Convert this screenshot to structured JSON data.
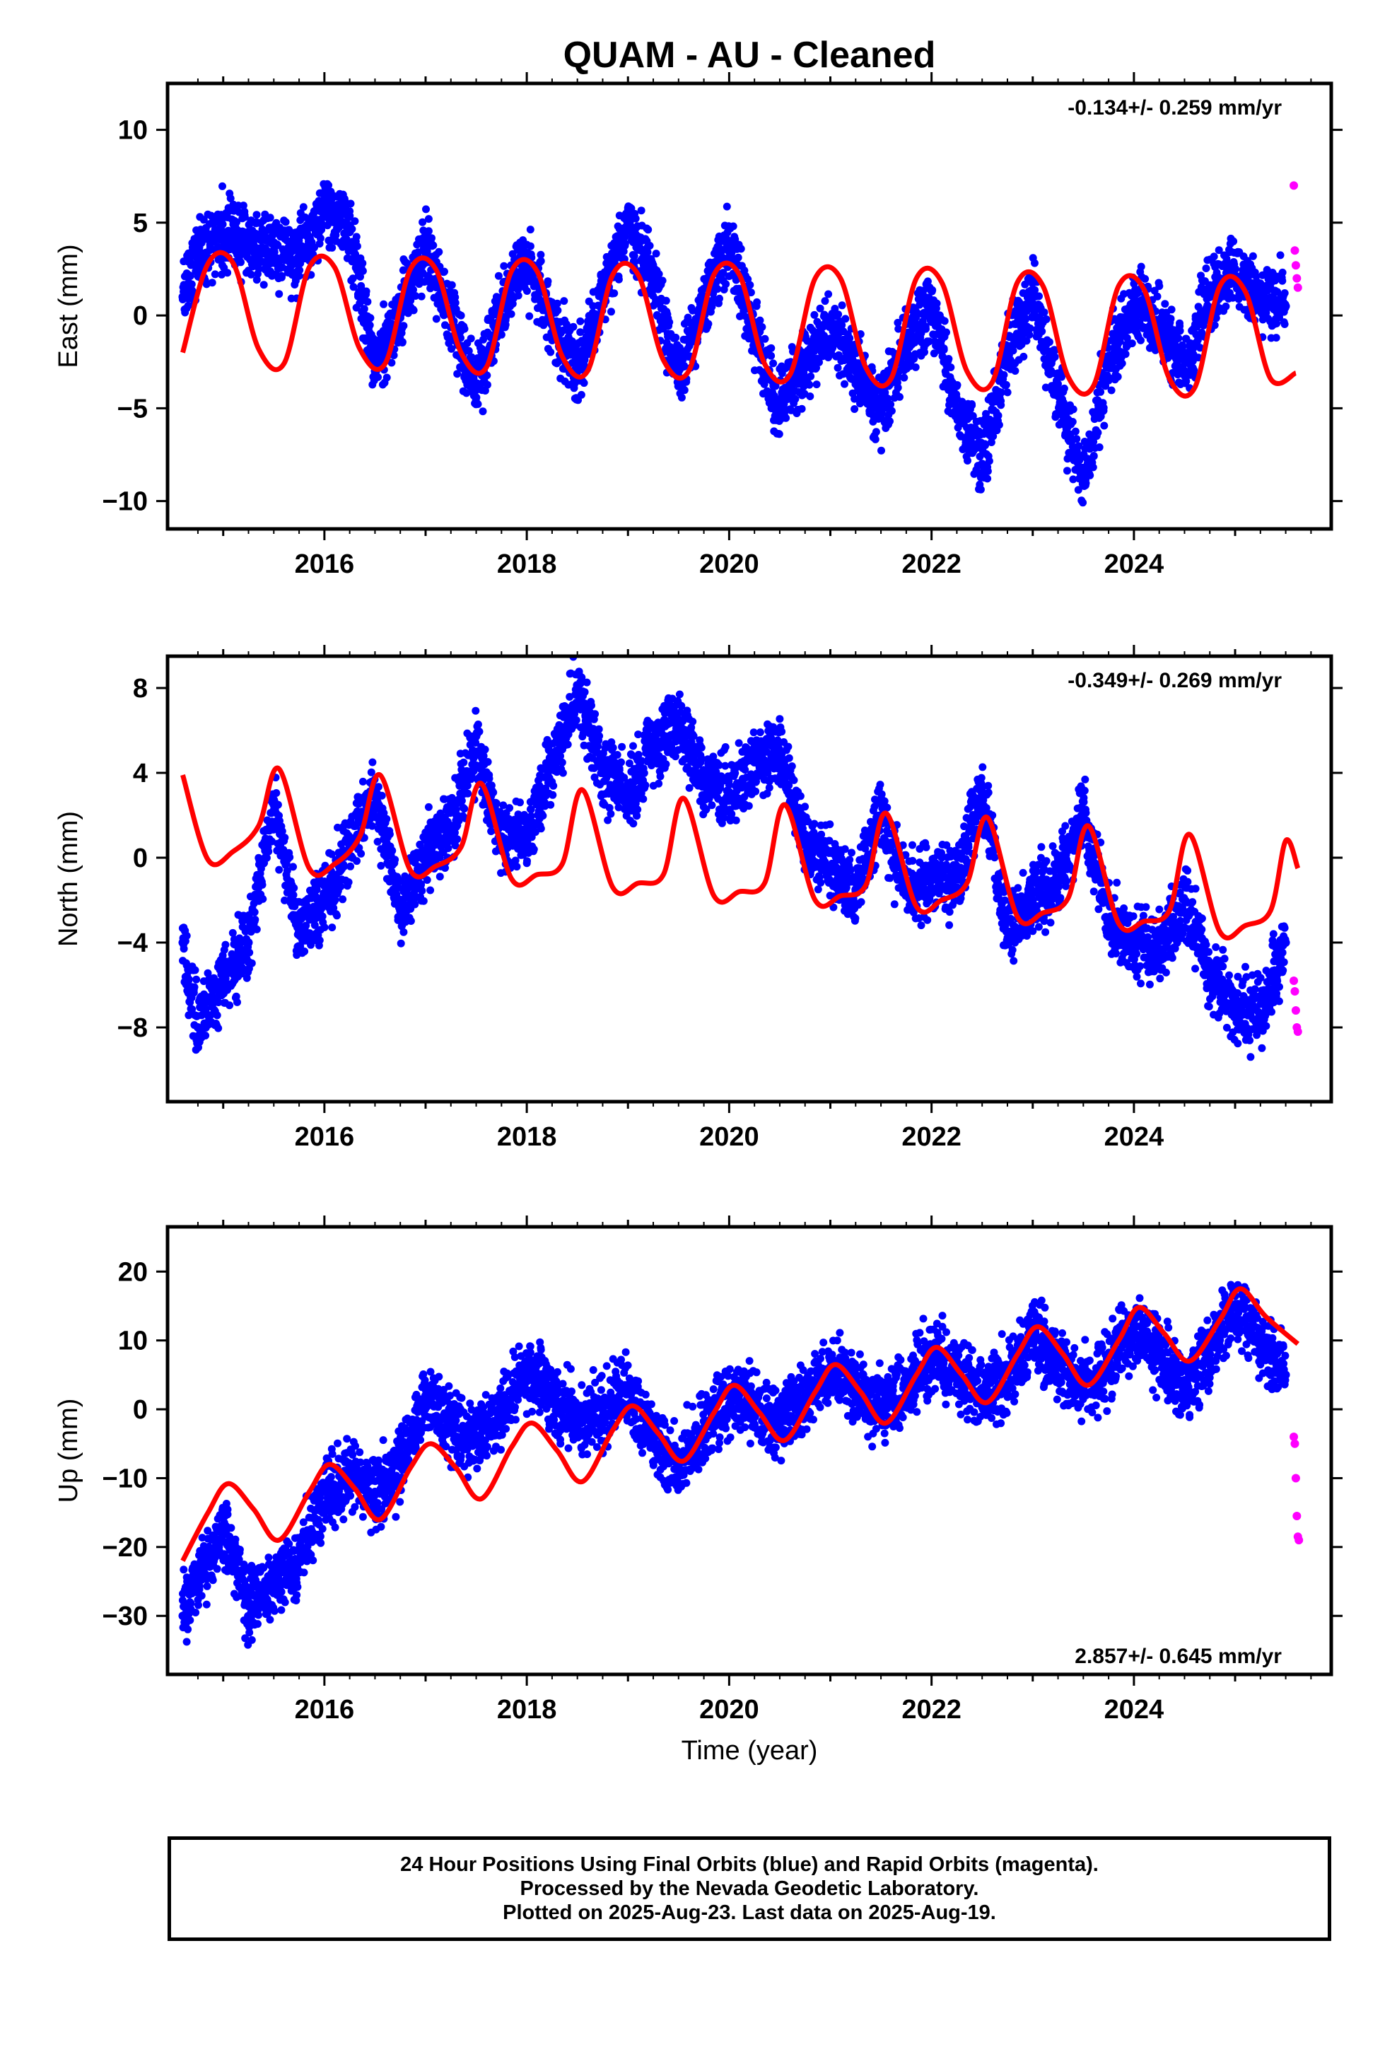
{
  "title": "QUAM  - AU - Cleaned",
  "xlabel": "Time (year)",
  "colors": {
    "final": "#0000ff",
    "rapid": "#ff00ff",
    "model": "#ff0000",
    "axis": "#000000"
  },
  "footer": {
    "line1": "24 Hour Positions Using Final Orbits (blue) and Rapid Orbits (magenta).",
    "line2": "Processed by the Nevada Geodetic Laboratory.",
    "line3": "Plotted on 2025-Aug-23. Last data on 2025-Aug-19."
  },
  "chart_data": [
    {
      "type": "scatter",
      "component": "East",
      "ylabel": "East (mm)",
      "rate_label": "-0.134+/- 0.259 mm/yr",
      "xlim": [
        2014.45,
        2025.95
      ],
      "ylim": [
        -11.5,
        12.5
      ],
      "xticks": [
        2016,
        2018,
        2020,
        2022,
        2024
      ],
      "xtick_labels": [
        "2016",
        "2018",
        "2020",
        "2022",
        "2024"
      ],
      "yticks": [
        -10,
        -5,
        0,
        5,
        10
      ],
      "ytick_labels": [
        "−10",
        "−5",
        "0",
        "5",
        "10"
      ],
      "series": [
        {
          "name": "Final Orbits",
          "color": "blue",
          "x": [
            2014.6,
            2014.75,
            2015.0,
            2015.25,
            2015.5,
            2015.75,
            2016.0,
            2016.25,
            2016.5,
            2016.75,
            2017.0,
            2017.25,
            2017.5,
            2017.75,
            2018.0,
            2018.25,
            2018.5,
            2018.75,
            2019.0,
            2019.25,
            2019.5,
            2019.75,
            2020.0,
            2020.25,
            2020.5,
            2020.75,
            2021.0,
            2021.25,
            2021.5,
            2021.75,
            2022.0,
            2022.25,
            2022.5,
            2022.75,
            2023.0,
            2023.25,
            2023.5,
            2023.75,
            2024.0,
            2024.25,
            2024.5,
            2024.75,
            2025.0,
            2025.25,
            2025.5
          ],
          "y": [
            1.0,
            3.0,
            4.5,
            4.0,
            3.5,
            3.0,
            6.0,
            4.5,
            -3.0,
            0.5,
            3.5,
            0.0,
            -4.0,
            0.5,
            3.0,
            -0.5,
            -3.0,
            1.0,
            5.0,
            2.0,
            -3.0,
            0.5,
            4.0,
            -1.0,
            -5.0,
            -2.5,
            -0.5,
            -3.0,
            -5.0,
            -1.5,
            0.5,
            -5.0,
            -8.0,
            -2.0,
            1.0,
            -4.0,
            -9.0,
            -2.5,
            0.5,
            -0.5,
            -3.0,
            1.0,
            2.5,
            1.0,
            0.5
          ]
        },
        {
          "name": "Rapid Orbits",
          "color": "magenta",
          "x": [
            2025.58,
            2025.59,
            2025.6,
            2025.61,
            2025.62
          ],
          "y": [
            7.0,
            3.5,
            2.7,
            2.0,
            1.5
          ]
        },
        {
          "name": "Model",
          "color": "red",
          "kind": "line",
          "x": [
            2014.6,
            2014.85,
            2015.1,
            2015.35,
            2015.6,
            2015.85,
            2016.1,
            2016.35,
            2016.6,
            2016.85,
            2017.1,
            2017.35,
            2017.6,
            2017.85,
            2018.1,
            2018.35,
            2018.6,
            2018.85,
            2019.1,
            2019.35,
            2019.6,
            2019.85,
            2020.1,
            2020.35,
            2020.6,
            2020.85,
            2021.1,
            2021.35,
            2021.6,
            2021.85,
            2022.1,
            2022.35,
            2022.6,
            2022.85,
            2023.1,
            2023.35,
            2023.6,
            2023.85,
            2024.1,
            2024.35,
            2024.6,
            2024.85,
            2025.1,
            2025.35,
            2025.6
          ],
          "y": [
            -2.0,
            2.8,
            2.8,
            -1.8,
            -2.6,
            2.6,
            2.6,
            -1.8,
            -2.6,
            2.5,
            2.5,
            -2.0,
            -2.8,
            2.4,
            2.4,
            -2.2,
            -3.0,
            2.2,
            2.2,
            -2.4,
            -3.0,
            2.2,
            2.2,
            -2.6,
            -3.2,
            2.0,
            2.0,
            -2.8,
            -3.4,
            2.0,
            1.8,
            -3.0,
            -3.6,
            1.8,
            1.6,
            -3.3,
            -3.8,
            1.6,
            1.4,
            -3.4,
            -3.9,
            1.6,
            1.3,
            -3.4,
            -3.1
          ]
        }
      ]
    },
    {
      "type": "scatter",
      "component": "North",
      "ylabel": "North (mm)",
      "rate_label": "-0.349+/- 0.269 mm/yr",
      "xlim": [
        2014.45,
        2025.95
      ],
      "ylim": [
        -11.5,
        9.5
      ],
      "xticks": [
        2016,
        2018,
        2020,
        2022,
        2024
      ],
      "xtick_labels": [
        "2016",
        "2018",
        "2020",
        "2022",
        "2024"
      ],
      "yticks": [
        -8,
        -4,
        0,
        4,
        8
      ],
      "ytick_labels": [
        "−8",
        "−4",
        "0",
        "4",
        "8"
      ],
      "series": [
        {
          "name": "Final Orbits",
          "color": "blue",
          "x": [
            2014.6,
            2014.75,
            2015.0,
            2015.25,
            2015.5,
            2015.75,
            2016.0,
            2016.25,
            2016.5,
            2016.75,
            2017.0,
            2017.25,
            2017.5,
            2017.75,
            2018.0,
            2018.25,
            2018.5,
            2018.75,
            2019.0,
            2019.25,
            2019.5,
            2019.75,
            2020.0,
            2020.25,
            2020.5,
            2020.75,
            2021.0,
            2021.25,
            2021.5,
            2021.75,
            2022.0,
            2022.25,
            2022.5,
            2022.75,
            2023.0,
            2023.25,
            2023.5,
            2023.75,
            2024.0,
            2024.25,
            2024.5,
            2024.75,
            2025.0,
            2025.25,
            2025.5
          ],
          "y": [
            -4.0,
            -8.0,
            -6.0,
            -4.0,
            2.5,
            -3.5,
            -2.0,
            0.5,
            3.0,
            -2.5,
            0.0,
            1.5,
            5.0,
            1.0,
            1.0,
            4.5,
            8.0,
            4.0,
            3.0,
            5.0,
            6.5,
            3.5,
            3.0,
            4.5,
            5.0,
            1.0,
            -0.5,
            -1.5,
            2.0,
            -1.5,
            -1.0,
            -1.0,
            3.0,
            -3.5,
            -2.0,
            -1.0,
            2.0,
            -3.0,
            -4.0,
            -4.5,
            -2.0,
            -5.5,
            -7.0,
            -7.5,
            -4.0
          ]
        },
        {
          "name": "Rapid Orbits",
          "color": "magenta",
          "x": [
            2025.58,
            2025.59,
            2025.6,
            2025.61,
            2025.62
          ],
          "y": [
            -5.8,
            -6.3,
            -7.2,
            -8.0,
            -8.2
          ]
        },
        {
          "name": "Model",
          "color": "red",
          "kind": "line",
          "x": [
            2014.6,
            2014.85,
            2015.1,
            2015.35,
            2015.55,
            2015.85,
            2016.1,
            2016.35,
            2016.55,
            2016.85,
            2017.1,
            2017.35,
            2017.55,
            2017.85,
            2018.1,
            2018.35,
            2018.55,
            2018.85,
            2019.1,
            2019.35,
            2019.55,
            2019.85,
            2020.1,
            2020.35,
            2020.55,
            2020.85,
            2021.1,
            2021.35,
            2021.55,
            2021.85,
            2022.1,
            2022.35,
            2022.55,
            2022.85,
            2023.1,
            2023.35,
            2023.55,
            2023.85,
            2024.1,
            2024.35,
            2024.55,
            2024.85,
            2025.1,
            2025.35,
            2025.5,
            2025.62
          ],
          "y": [
            3.9,
            -0.1,
            0.3,
            1.5,
            4.2,
            -0.5,
            -0.3,
            1.0,
            3.9,
            -0.6,
            -0.4,
            0.5,
            3.5,
            -1.0,
            -0.8,
            -0.3,
            3.2,
            -1.4,
            -1.2,
            -0.8,
            2.8,
            -1.8,
            -1.6,
            -1.2,
            2.5,
            -2.0,
            -1.8,
            -1.3,
            2.1,
            -2.3,
            -2.0,
            -1.2,
            1.9,
            -2.8,
            -2.6,
            -1.9,
            1.5,
            -3.1,
            -3.0,
            -2.5,
            1.1,
            -3.5,
            -3.2,
            -2.5,
            0.8,
            -0.5
          ]
        }
      ]
    },
    {
      "type": "scatter",
      "component": "Up",
      "ylabel": "Up (mm)",
      "rate_label": "2.857+/- 0.645 mm/yr",
      "xlim": [
        2014.45,
        2025.95
      ],
      "ylim": [
        -38.5,
        26.5
      ],
      "xticks": [
        2016,
        2018,
        2020,
        2022,
        2024
      ],
      "xtick_labels": [
        "2016",
        "2018",
        "2020",
        "2022",
        "2024"
      ],
      "yticks": [
        -30,
        -20,
        -10,
        0,
        10,
        20
      ],
      "ytick_labels": [
        "−30",
        "−20",
        "−10",
        "0",
        "10",
        "20"
      ],
      "series": [
        {
          "name": "Final Orbits",
          "color": "blue",
          "x": [
            2014.6,
            2014.75,
            2015.0,
            2015.25,
            2015.5,
            2015.75,
            2016.0,
            2016.25,
            2016.5,
            2016.75,
            2017.0,
            2017.25,
            2017.5,
            2017.75,
            2018.0,
            2018.25,
            2018.5,
            2018.75,
            2019.0,
            2019.25,
            2019.5,
            2019.75,
            2020.0,
            2020.25,
            2020.5,
            2020.75,
            2021.0,
            2021.25,
            2021.5,
            2021.75,
            2022.0,
            2022.25,
            2022.5,
            2022.75,
            2023.0,
            2023.25,
            2023.5,
            2023.75,
            2024.0,
            2024.25,
            2024.5,
            2024.75,
            2025.0,
            2025.25,
            2025.5
          ],
          "y": [
            -30.0,
            -25.0,
            -18.0,
            -28.0,
            -25.0,
            -22.0,
            -12.0,
            -10.0,
            -12.0,
            -8.0,
            2.0,
            -2.0,
            -5.0,
            0.0,
            5.0,
            3.0,
            -2.0,
            0.0,
            3.0,
            -5.0,
            -8.0,
            -3.0,
            2.0,
            1.0,
            -2.0,
            2.0,
            6.0,
            3.0,
            0.0,
            3.0,
            8.0,
            5.0,
            2.0,
            5.0,
            10.0,
            7.0,
            3.0,
            6.0,
            12.0,
            8.0,
            3.0,
            8.0,
            15.0,
            10.0,
            5.0
          ]
        },
        {
          "name": "Rapid Orbits",
          "color": "magenta",
          "x": [
            2025.58,
            2025.59,
            2025.6,
            2025.61,
            2025.62,
            2025.63
          ],
          "y": [
            -4.0,
            -5.0,
            -10.0,
            -15.5,
            -18.5,
            -19.0
          ]
        },
        {
          "name": "Model",
          "color": "red",
          "kind": "line",
          "x": [
            2014.6,
            2014.85,
            2015.05,
            2015.3,
            2015.55,
            2015.85,
            2016.05,
            2016.3,
            2016.55,
            2016.85,
            2017.05,
            2017.3,
            2017.55,
            2017.85,
            2018.05,
            2018.3,
            2018.55,
            2018.85,
            2019.05,
            2019.3,
            2019.55,
            2019.85,
            2020.05,
            2020.3,
            2020.55,
            2020.85,
            2021.05,
            2021.3,
            2021.55,
            2021.85,
            2022.05,
            2022.3,
            2022.55,
            2022.85,
            2023.05,
            2023.3,
            2023.55,
            2023.85,
            2024.05,
            2024.3,
            2024.55,
            2024.85,
            2025.05,
            2025.3,
            2025.62
          ],
          "y": [
            -22.0,
            -15.0,
            -10.8,
            -14.5,
            -19.0,
            -12.0,
            -8.0,
            -11.5,
            -16.0,
            -8.5,
            -5.0,
            -8.5,
            -13.0,
            -5.5,
            -2.0,
            -6.0,
            -10.5,
            -3.0,
            0.5,
            -3.5,
            -7.5,
            -0.5,
            3.5,
            -0.5,
            -4.5,
            2.5,
            6.5,
            2.5,
            -2.0,
            5.0,
            9.0,
            5.0,
            1.0,
            8.0,
            12.0,
            8.0,
            3.5,
            10.0,
            14.8,
            11.0,
            7.0,
            13.0,
            17.5,
            13.5,
            9.5
          ]
        }
      ]
    }
  ]
}
